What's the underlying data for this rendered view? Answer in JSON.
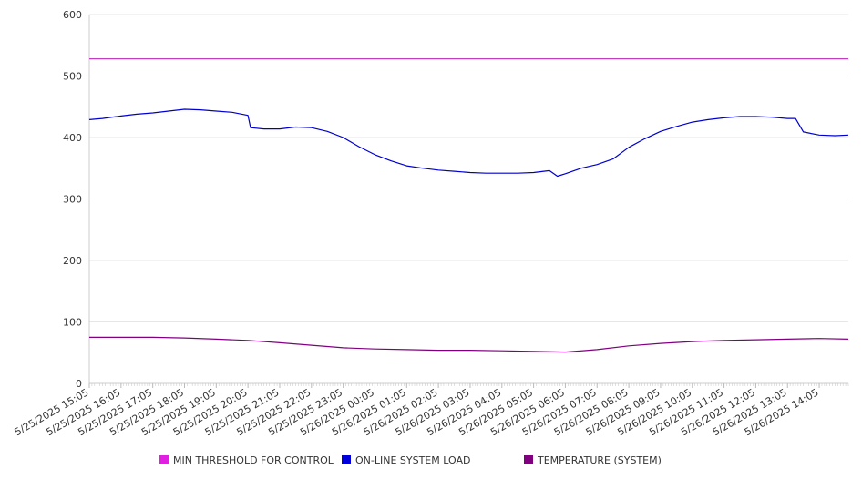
{
  "chart_data": {
    "type": "line",
    "ylim": [
      0,
      600
    ],
    "yticks": [
      0,
      100,
      200,
      300,
      400,
      500,
      600
    ],
    "grid": true,
    "x_tick_labels": [
      "5/25/2025 15:05",
      "5/25/2025 16:05",
      "5/25/2025 17:05",
      "5/25/2025 18:05",
      "5/25/2025 19:05",
      "5/25/2025 20:05",
      "5/25/2025 21:05",
      "5/25/2025 22:05",
      "5/25/2025 23:05",
      "5/26/2025 00:05",
      "5/26/2025 01:05",
      "5/26/2025 02:05",
      "5/26/2025 03:05",
      "5/26/2025 04:05",
      "5/26/2025 05:05",
      "5/26/2025 06:05",
      "5/26/2025 07:05",
      "5/26/2025 08:05",
      "5/26/2025 09:05",
      "5/26/2025 10:05",
      "5/26/2025 11:05",
      "5/26/2025 12:05",
      "5/26/2025 13:05",
      "5/26/2025 14:05"
    ],
    "legend_position": "bottom",
    "series": [
      {
        "name": "MIN THRESHOLD FOR CONTROL",
        "color": "#e020e0",
        "line_color": "#c040c0",
        "x": [
          "5/25/2025 15:05",
          "5/26/2025 15:00"
        ],
        "values": [
          528,
          528
        ]
      },
      {
        "name": "ON-LINE SYSTEM LOAD",
        "color": "#0000dd",
        "line_color": "#0000cc",
        "x": [
          "5/25/2025 15:05",
          "5/25/2025 15:30",
          "5/25/2025 16:05",
          "5/25/2025 16:35",
          "5/25/2025 17:05",
          "5/25/2025 17:35",
          "5/25/2025 18:05",
          "5/25/2025 18:35",
          "5/25/2025 19:05",
          "5/25/2025 19:35",
          "5/25/2025 20:05",
          "5/25/2025 20:10",
          "5/25/2025 20:35",
          "5/25/2025 21:05",
          "5/25/2025 21:35",
          "5/25/2025 22:05",
          "5/25/2025 22:35",
          "5/25/2025 23:05",
          "5/25/2025 23:35",
          "5/26/2025 00:05",
          "5/26/2025 00:35",
          "5/26/2025 01:05",
          "5/26/2025 01:35",
          "5/26/2025 02:05",
          "5/26/2025 02:35",
          "5/26/2025 03:05",
          "5/26/2025 03:35",
          "5/26/2025 04:05",
          "5/26/2025 04:35",
          "5/26/2025 05:05",
          "5/26/2025 05:35",
          "5/26/2025 05:50",
          "5/26/2025 06:05",
          "5/26/2025 06:35",
          "5/26/2025 07:05",
          "5/26/2025 07:35",
          "5/26/2025 08:05",
          "5/26/2025 08:35",
          "5/26/2025 09:05",
          "5/26/2025 09:35",
          "5/26/2025 10:05",
          "5/26/2025 10:35",
          "5/26/2025 11:05",
          "5/26/2025 11:35",
          "5/26/2025 12:05",
          "5/26/2025 12:35",
          "5/26/2025 13:05",
          "5/26/2025 13:20",
          "5/26/2025 13:35",
          "5/26/2025 14:05",
          "5/26/2025 14:35",
          "5/26/2025 15:00"
        ],
        "values": [
          429,
          431,
          435,
          438,
          440,
          443,
          446,
          445,
          443,
          441,
          436,
          416,
          414,
          414,
          417,
          416,
          410,
          400,
          385,
          372,
          362,
          354,
          350,
          347,
          345,
          343,
          342,
          342,
          342,
          343,
          346,
          337,
          341,
          350,
          356,
          365,
          384,
          398,
          410,
          418,
          425,
          429,
          432,
          434,
          434,
          433,
          431,
          431,
          409,
          404,
          403,
          404
        ]
      },
      {
        "name": "TEMPERATURE (SYSTEM)",
        "color": "#800080",
        "line_color": "#800080",
        "x": [
          "5/25/2025 15:05",
          "5/25/2025 16:05",
          "5/25/2025 17:05",
          "5/25/2025 18:05",
          "5/25/2025 19:05",
          "5/25/2025 20:05",
          "5/25/2025 21:05",
          "5/25/2025 22:05",
          "5/25/2025 23:05",
          "5/26/2025 00:05",
          "5/26/2025 01:05",
          "5/26/2025 02:05",
          "5/26/2025 03:05",
          "5/26/2025 04:05",
          "5/26/2025 05:05",
          "5/26/2025 06:05",
          "5/26/2025 07:05",
          "5/26/2025 08:05",
          "5/26/2025 09:05",
          "5/26/2025 10:05",
          "5/26/2025 11:05",
          "5/26/2025 12:05",
          "5/26/2025 13:05",
          "5/26/2025 14:05",
          "5/26/2025 15:00"
        ],
        "values": [
          75,
          75,
          75,
          74,
          72,
          70,
          66,
          62,
          58,
          56,
          55,
          54,
          54,
          53,
          52,
          51,
          55,
          61,
          65,
          68,
          70,
          71,
          72,
          73,
          72
        ]
      }
    ]
  }
}
